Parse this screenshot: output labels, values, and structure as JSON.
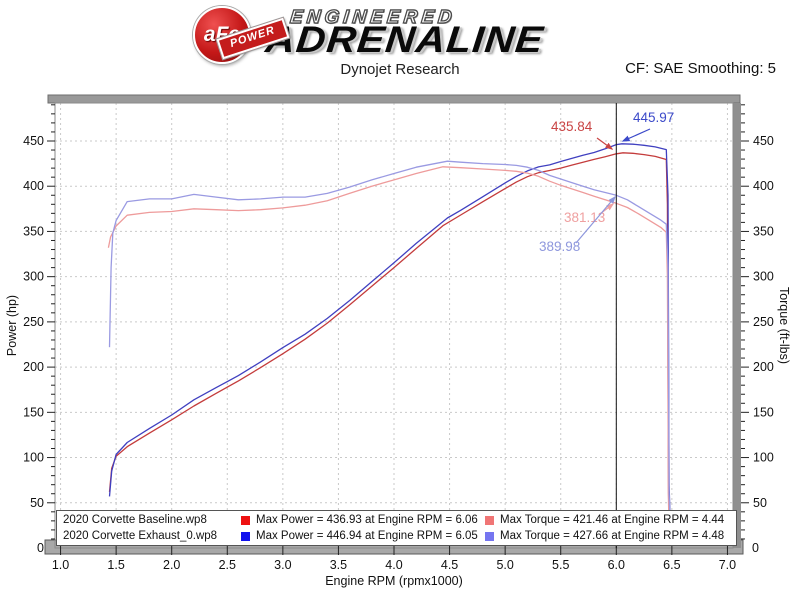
{
  "header": {
    "brand": {
      "badge_text": "aFe",
      "badge_sub": "POWER",
      "line1": "ENGINEERED",
      "line2": "ADRENALINE"
    },
    "subtitle": "Dynojet Research",
    "correction": "CF: SAE Smoothing: 5"
  },
  "chart_data": {
    "type": "line",
    "title": "Dynojet Research",
    "xlabel": "Engine RPM (rpmx1000)",
    "ylabel_left": "Power (hp)",
    "ylabel_right": "Torque (ft-lbs)",
    "xlim": [
      0.95,
      7.05
    ],
    "ylim": [
      0,
      492
    ],
    "x_major_ticks": [
      1.0,
      1.5,
      2.0,
      2.5,
      3.0,
      3.5,
      4.0,
      4.5,
      5.0,
      5.5,
      6.0,
      6.5,
      7.0
    ],
    "x_minor_step": 0.1,
    "y_major_ticks": [
      50,
      100,
      150,
      200,
      250,
      300,
      350,
      400,
      450
    ],
    "y_minor_step": 10,
    "y_zero_label": "0",
    "grid": "dashed",
    "legend_position": "bottom-inside",
    "cursor_x": 6.0,
    "series": [
      {
        "key": "baseline-power",
        "name": "2020 Corvette Baseline.wp8 Power",
        "color": "#c43c3c",
        "axis": "left",
        "points": [
          [
            1.44,
            62
          ],
          [
            1.46,
            88
          ],
          [
            1.5,
            101.5
          ],
          [
            1.6,
            112
          ],
          [
            1.8,
            127
          ],
          [
            2.0,
            141.7
          ],
          [
            2.2,
            157
          ],
          [
            2.4,
            171
          ],
          [
            2.6,
            184.7
          ],
          [
            2.8,
            199.4
          ],
          [
            3.0,
            214.8
          ],
          [
            3.2,
            230.9
          ],
          [
            3.4,
            248.6
          ],
          [
            3.6,
            268.7
          ],
          [
            3.8,
            289.4
          ],
          [
            4.0,
            310
          ],
          [
            4.2,
            331.1
          ],
          [
            4.44,
            356.3
          ],
          [
            4.6,
            368.2
          ],
          [
            4.8,
            382.9
          ],
          [
            5.0,
            397.4
          ],
          [
            5.1,
            404.5
          ],
          [
            5.2,
            410.5
          ],
          [
            5.3,
            414.9
          ],
          [
            5.4,
            417.4
          ],
          [
            5.5,
            420
          ],
          [
            5.6,
            423.3
          ],
          [
            5.7,
            426.6
          ],
          [
            5.8,
            429.6
          ],
          [
            5.9,
            432.6
          ],
          [
            6.0,
            435.84
          ],
          [
            6.06,
            436.93
          ],
          [
            6.15,
            436.4
          ],
          [
            6.25,
            435
          ],
          [
            6.35,
            433
          ],
          [
            6.45,
            429.5
          ],
          [
            6.46,
            380
          ],
          [
            6.47,
            60
          ],
          [
            6.48,
            5
          ]
        ]
      },
      {
        "key": "exhaust-power",
        "name": "2020 Corvette Exhaust_0.wp8 Power",
        "color": "#4040c0",
        "axis": "left",
        "points": [
          [
            1.44,
            57
          ],
          [
            1.46,
            85
          ],
          [
            1.5,
            103.4
          ],
          [
            1.6,
            116.6
          ],
          [
            1.8,
            132.2
          ],
          [
            2.0,
            147
          ],
          [
            2.2,
            163.8
          ],
          [
            2.4,
            177.3
          ],
          [
            2.6,
            190.6
          ],
          [
            2.8,
            205.8
          ],
          [
            3.0,
            221.6
          ],
          [
            3.2,
            236.4
          ],
          [
            3.4,
            253.8
          ],
          [
            3.6,
            273.5
          ],
          [
            3.8,
            294.5
          ],
          [
            4.0,
            315.3
          ],
          [
            4.2,
            336.8
          ],
          [
            4.48,
            364.8
          ],
          [
            4.6,
            373.4
          ],
          [
            4.8,
            388.4
          ],
          [
            5.0,
            403.7
          ],
          [
            5.1,
            410.9
          ],
          [
            5.2,
            416.9
          ],
          [
            5.3,
            421.4
          ],
          [
            5.4,
            423.6
          ],
          [
            5.5,
            427.3
          ],
          [
            5.6,
            430.8
          ],
          [
            5.7,
            434.3
          ],
          [
            5.8,
            437.3
          ],
          [
            5.9,
            441.4
          ],
          [
            6.0,
            445.97
          ],
          [
            6.05,
            446.94
          ],
          [
            6.15,
            446.4
          ],
          [
            6.25,
            445.2
          ],
          [
            6.35,
            443.5
          ],
          [
            6.45,
            440.5
          ],
          [
            6.465,
            390
          ],
          [
            6.475,
            70
          ],
          [
            6.49,
            5
          ]
        ]
      },
      {
        "key": "baseline-torque",
        "name": "2020 Corvette Baseline.wp8 Torque",
        "color": "#ee9b9b",
        "axis": "right",
        "points": [
          [
            1.43,
            332
          ],
          [
            1.45,
            344
          ],
          [
            1.5,
            356
          ],
          [
            1.6,
            368
          ],
          [
            1.8,
            371
          ],
          [
            2.0,
            372
          ],
          [
            2.2,
            375
          ],
          [
            2.4,
            374
          ],
          [
            2.6,
            373
          ],
          [
            2.8,
            374
          ],
          [
            3.0,
            376
          ],
          [
            3.2,
            379
          ],
          [
            3.4,
            384
          ],
          [
            3.6,
            392
          ],
          [
            3.8,
            400
          ],
          [
            4.0,
            407
          ],
          [
            4.2,
            414
          ],
          [
            4.44,
            421.46
          ],
          [
            4.6,
            420.5
          ],
          [
            4.8,
            419
          ],
          [
            5.0,
            417.5
          ],
          [
            5.1,
            416.5
          ],
          [
            5.2,
            414.5
          ],
          [
            5.3,
            411
          ],
          [
            5.4,
            405.5
          ],
          [
            5.5,
            401
          ],
          [
            5.6,
            397
          ],
          [
            5.7,
            393
          ],
          [
            5.8,
            389
          ],
          [
            5.9,
            385
          ],
          [
            6.0,
            381.13
          ],
          [
            6.1,
            376.5
          ],
          [
            6.2,
            369.5
          ],
          [
            6.3,
            362
          ],
          [
            6.4,
            354.5
          ],
          [
            6.45,
            349
          ],
          [
            6.46,
            300
          ],
          [
            6.47,
            50
          ],
          [
            6.48,
            5
          ]
        ]
      },
      {
        "key": "exhaust-torque",
        "name": "2020 Corvette Exhaust_0.wp8 Torque",
        "color": "#9a9ae2",
        "axis": "right",
        "points": [
          [
            1.44,
            222
          ],
          [
            1.455,
            310
          ],
          [
            1.47,
            348
          ],
          [
            1.5,
            362
          ],
          [
            1.6,
            383
          ],
          [
            1.8,
            386
          ],
          [
            2.0,
            386
          ],
          [
            2.2,
            391
          ],
          [
            2.4,
            388
          ],
          [
            2.6,
            385
          ],
          [
            2.8,
            386
          ],
          [
            3.0,
            388
          ],
          [
            3.2,
            388
          ],
          [
            3.4,
            392
          ],
          [
            3.6,
            399
          ],
          [
            3.8,
            407
          ],
          [
            4.0,
            414
          ],
          [
            4.2,
            421
          ],
          [
            4.48,
            427.66
          ],
          [
            4.6,
            426.5
          ],
          [
            4.8,
            425
          ],
          [
            5.0,
            424
          ],
          [
            5.1,
            423
          ],
          [
            5.2,
            421
          ],
          [
            5.3,
            417.5
          ],
          [
            5.4,
            412
          ],
          [
            5.5,
            408
          ],
          [
            5.6,
            404
          ],
          [
            5.7,
            400
          ],
          [
            5.8,
            396
          ],
          [
            5.9,
            393
          ],
          [
            6.0,
            389.98
          ],
          [
            6.1,
            385
          ],
          [
            6.2,
            377.5
          ],
          [
            6.3,
            370
          ],
          [
            6.4,
            362.5
          ],
          [
            6.45,
            358
          ],
          [
            6.465,
            310
          ],
          [
            6.475,
            60
          ],
          [
            6.49,
            5
          ]
        ]
      }
    ],
    "annotations": [
      {
        "label": "435.84",
        "color": "#c94444",
        "series": "baseline-power",
        "at_rpm": 6.0
      },
      {
        "label": "445.97",
        "color": "#3b49c9",
        "series": "exhaust-power",
        "at_rpm": 6.0
      },
      {
        "label": "381.13",
        "color": "#efa0a0",
        "series": "baseline-torque",
        "at_rpm": 6.0
      },
      {
        "label": "389.98",
        "color": "#8e97dd",
        "series": "exhaust-torque",
        "at_rpm": 6.0
      }
    ]
  },
  "legend": {
    "rows": [
      {
        "file": "2020 Corvette Baseline.wp8",
        "power_color": "#ee1111",
        "power_text": "Max Power = 436.93 at Engine RPM = 6.06",
        "torque_color": "#f07575",
        "torque_text": "Max Torque = 421.46 at Engine RPM = 4.44"
      },
      {
        "file": "2020 Corvette Exhaust_0.wp8",
        "power_color": "#1111ee",
        "power_text": "Max Power = 446.94 at Engine RPM = 6.05",
        "torque_color": "#7575f0",
        "torque_text": "Max Torque = 427.66 at Engine RPM = 4.48"
      }
    ]
  }
}
